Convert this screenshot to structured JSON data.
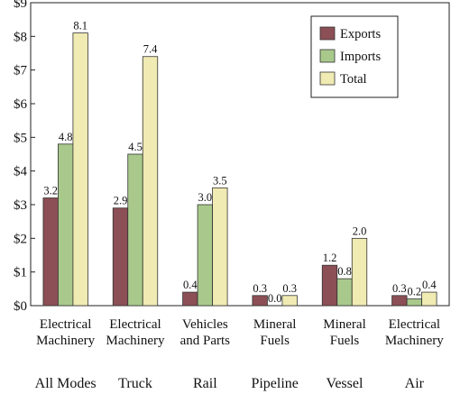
{
  "chart_data": {
    "type": "bar",
    "title": "",
    "xlabel": "",
    "ylabel": "",
    "ylim": [
      0,
      9
    ],
    "yticks": [
      "$0",
      "$1",
      "$2",
      "$3",
      "$4",
      "$5",
      "$6",
      "$7",
      "$8",
      "$9"
    ],
    "grid": false,
    "legend_position": "top-right",
    "categories": [
      {
        "mode": "All Modes",
        "label": [
          "Electrical",
          "Machinery"
        ]
      },
      {
        "mode": "Truck",
        "label": [
          "Electrical",
          "Machinery"
        ]
      },
      {
        "mode": "Rail",
        "label": [
          "Vehicles",
          "and Parts"
        ]
      },
      {
        "mode": "Pipeline",
        "label": [
          "Mineral",
          "Fuels"
        ]
      },
      {
        "mode": "Vessel",
        "label": [
          "Mineral",
          "Fuels"
        ]
      },
      {
        "mode": "Air",
        "label": [
          "Electrical",
          "Machinery"
        ]
      }
    ],
    "series": [
      {
        "name": "Exports",
        "color": "#8b4f55",
        "values": [
          3.2,
          2.9,
          0.4,
          0.3,
          1.2,
          0.3
        ],
        "labels": [
          "3.2",
          "2.9",
          "0.4",
          "0.3",
          "1.2",
          "0.3"
        ]
      },
      {
        "name": "Imports",
        "color": "#a8c98b",
        "values": [
          4.8,
          4.5,
          3.0,
          0.0,
          0.8,
          0.2
        ],
        "labels": [
          "4.8",
          "4.5",
          "3.0",
          "0.0",
          "0.8",
          "0.2"
        ]
      },
      {
        "name": "Total",
        "color": "#f0eab3",
        "values": [
          8.1,
          7.4,
          3.5,
          0.3,
          2.0,
          0.4
        ],
        "labels": [
          "8.1",
          "7.4",
          "3.5",
          "0.3",
          "2.0",
          "0.4"
        ]
      }
    ]
  }
}
